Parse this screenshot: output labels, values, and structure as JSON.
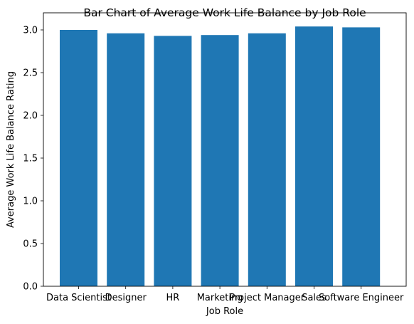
{
  "chart_data": {
    "type": "bar",
    "title": "Bar Chart of Average Work Life Balance by Job Role",
    "xlabel": "Job Role",
    "ylabel": "Average Work Life Balance Rating",
    "categories": [
      "Data Scientist",
      "Designer",
      "HR",
      "Marketing",
      "Project Manager",
      "Sales",
      "Software Engineer"
    ],
    "values": [
      3.0,
      2.96,
      2.93,
      2.94,
      2.96,
      3.04,
      3.03
    ],
    "ylim": [
      0,
      3.2
    ],
    "yticks": [
      "0.0",
      "0.5",
      "1.0",
      "1.5",
      "2.0",
      "2.5",
      "3.0"
    ],
    "grid": false,
    "bar_color": "#1f77b4"
  }
}
